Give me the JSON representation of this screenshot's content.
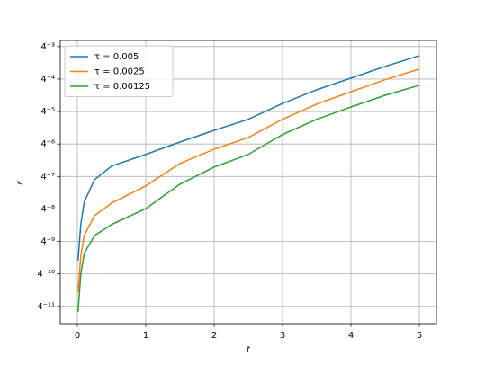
{
  "chart_data": {
    "type": "line",
    "x_label": "t",
    "y_label": "ε",
    "xlim": [
      -0.25,
      5.25
    ],
    "xticks": [
      0,
      1,
      2,
      3,
      4,
      5
    ],
    "ylim": [
      1.14e-07,
      0.0203
    ],
    "y_scale": "log",
    "log_base": 4,
    "yticks": [
      {
        "value": 0.015625,
        "label": "4⁻³"
      },
      {
        "value": 0.00390625,
        "label": "4⁻⁴"
      },
      {
        "value": 0.0009765625,
        "label": "4⁻⁵"
      },
      {
        "value": 0.000244140625,
        "label": "4⁻⁶"
      },
      {
        "value": 6.103515625e-05,
        "label": "4⁻⁷"
      },
      {
        "value": 1.52587890625e-05,
        "label": "4⁻⁸"
      },
      {
        "value": 3.814697265625e-06,
        "label": "4⁻⁹"
      },
      {
        "value": 9.5367431640625e-07,
        "label": "4⁻¹⁰"
      },
      {
        "value": 2.384185791015625e-07,
        "label": "4⁻¹¹"
      }
    ],
    "grid": true,
    "legend_loc": "upper left",
    "x": [
      0.01,
      0.05,
      0.1,
      0.25,
      0.5,
      1,
      1.5,
      2,
      2.5,
      3,
      3.5,
      4,
      4.5,
      5
    ],
    "series": [
      {
        "name": "τ = 0.005",
        "color": "#1f77b4",
        "values": [
          1.683e-06,
          7.84e-06,
          2.042e-05,
          5.31e-05,
          9.51e-05,
          0.0001567,
          0.0002653,
          0.000437,
          0.0007,
          0.001381,
          0.002472,
          0.00407,
          0.00671,
          0.0106
        ]
      },
      {
        "name": "τ = 0.0025",
        "color": "#ff7f0e",
        "values": [
          4.39e-07,
          2.044e-06,
          4.9e-06,
          1.141e-05,
          1.958e-05,
          4.08e-05,
          0.0001063,
          0.0001955,
          0.000322,
          0.0007,
          0.001343,
          0.002275,
          0.0038,
          0.006
        ]
      },
      {
        "name": "τ = 0.00125",
        "color": "#2ca02c",
        "values": [
          1.884e-07,
          9.4e-07,
          2.284e-06,
          4.9e-06,
          7.84e-06,
          1.547e-05,
          4.38e-05,
          9.12e-05,
          0.0001567,
          0.000365,
          0.0007,
          0.001186,
          0.001953,
          0.003
        ]
      }
    ]
  }
}
